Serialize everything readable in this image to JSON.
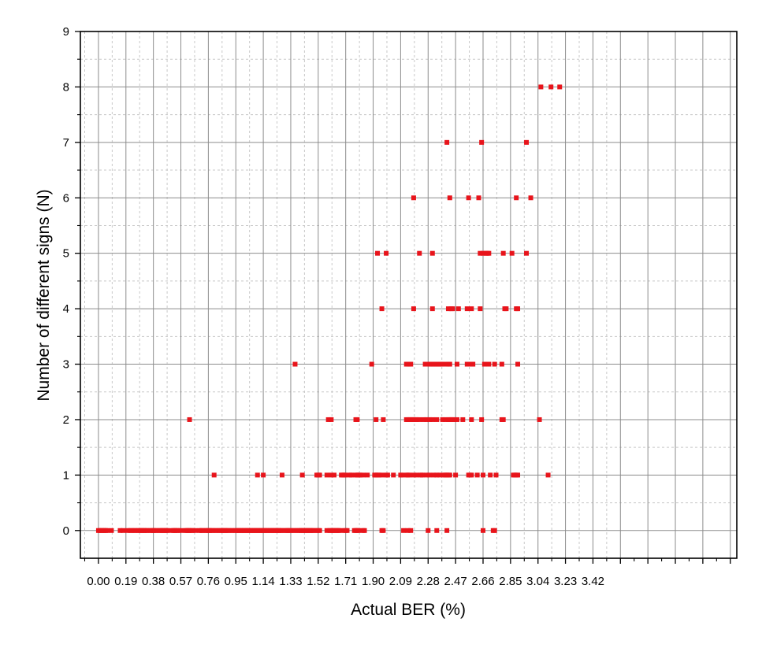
{
  "chart_data": {
    "type": "scatter",
    "xlabel": "Actual BER (%)",
    "ylabel": "Number of different signs (N)",
    "xlim": [
      -0.125,
      4.415
    ],
    "ylim": [
      -0.5,
      9
    ],
    "x_tick_labels": [
      "0.00",
      "0.19",
      "0.38",
      "0.57",
      "0.76",
      "0.95",
      "1.14",
      "1.33",
      "1.52",
      "1.71",
      "1.90",
      "2.09",
      "2.28",
      "2.47",
      "2.66",
      "2.85",
      "3.04",
      "3.23",
      "3.42"
    ],
    "x_tick_values": [
      0,
      0.19,
      0.38,
      0.57,
      0.76,
      0.95,
      1.14,
      1.33,
      1.52,
      1.71,
      1.9,
      2.09,
      2.28,
      2.47,
      2.66,
      2.85,
      3.04,
      3.23,
      3.42
    ],
    "y_tick_labels": [
      "0",
      "1",
      "2",
      "3",
      "4",
      "5",
      "6",
      "7",
      "8",
      "9"
    ],
    "y_tick_values": [
      0,
      1,
      2,
      3,
      4,
      5,
      6,
      7,
      8,
      9
    ],
    "grid": true,
    "marker_color": "#e8141b",
    "series": [
      {
        "points": [
          {
            "y": 0,
            "x": [
              0.0,
              0.01,
              0.02,
              0.03,
              0.04,
              0.05,
              0.06,
              0.09,
              0.15,
              0.17,
              0.2,
              0.22,
              0.23,
              0.25,
              0.26,
              0.28,
              0.29,
              0.3,
              0.31,
              0.32,
              0.33,
              0.34,
              0.36,
              0.37,
              0.38,
              0.39,
              0.4,
              0.42,
              0.43,
              0.44,
              0.45,
              0.46,
              0.47,
              0.48,
              0.51,
              0.52,
              0.53,
              0.54,
              0.55,
              0.57,
              0.6,
              0.61,
              0.62,
              0.63,
              0.64,
              0.65,
              0.67,
              0.7,
              0.71,
              0.72,
              0.74,
              0.75,
              0.76,
              0.77,
              0.78,
              0.79,
              0.81,
              0.82,
              0.84,
              0.85,
              0.86,
              0.87,
              0.88,
              0.89,
              0.9,
              0.92,
              0.93,
              0.95,
              0.96,
              0.97,
              0.98,
              0.99,
              1.0,
              1.01,
              1.02,
              1.03,
              1.04,
              1.05,
              1.06,
              1.07,
              1.08,
              1.09,
              1.1,
              1.11,
              1.12,
              1.13,
              1.14,
              1.15,
              1.16,
              1.17,
              1.18,
              1.19,
              1.2,
              1.21,
              1.22,
              1.23,
              1.24,
              1.25,
              1.26,
              1.27,
              1.29,
              1.3,
              1.31,
              1.32,
              1.33,
              1.35,
              1.36,
              1.38,
              1.39,
              1.4,
              1.41,
              1.42,
              1.43,
              1.44,
              1.45,
              1.46,
              1.47,
              1.48,
              1.49,
              1.51,
              1.52,
              1.53,
              1.58,
              1.6,
              1.61,
              1.62,
              1.63,
              1.64,
              1.65,
              1.66,
              1.67,
              1.7,
              1.71,
              1.72,
              1.77,
              1.78,
              1.79,
              1.8,
              1.83,
              1.84,
              1.96,
              1.97,
              2.11,
              2.14,
              2.16,
              2.28,
              2.34,
              2.41,
              2.66,
              2.73,
              2.74
            ]
          },
          {
            "y": 1,
            "x": [
              0.8,
              1.1,
              1.14,
              1.27,
              1.41,
              1.51,
              1.52,
              1.53,
              1.58,
              1.61,
              1.63,
              1.68,
              1.69,
              1.7,
              1.71,
              1.74,
              1.75,
              1.78,
              1.79,
              1.8,
              1.81,
              1.83,
              1.86,
              1.91,
              1.92,
              1.93,
              1.94,
              1.96,
              1.99,
              2.0,
              2.04,
              2.09,
              2.1,
              2.13,
              2.14,
              2.15,
              2.18,
              2.2,
              2.23,
              2.24,
              2.27,
              2.29,
              2.32,
              2.34,
              2.36,
              2.39,
              2.4,
              2.41,
              2.42,
              2.43,
              2.47,
              2.56,
              2.57,
              2.58,
              2.62,
              2.66,
              2.71,
              2.75,
              2.87,
              2.88,
              2.89,
              2.9,
              3.11
            ]
          },
          {
            "y": 2,
            "x": [
              0.63,
              1.59,
              1.61,
              1.78,
              1.79,
              1.92,
              1.97,
              2.13,
              2.14,
              2.15,
              2.16,
              2.17,
              2.18,
              2.19,
              2.2,
              2.22,
              2.25,
              2.27,
              2.29,
              2.31,
              2.34,
              2.38,
              2.4,
              2.42,
              2.43,
              2.44,
              2.45,
              2.46,
              2.48,
              2.52,
              2.58,
              2.65,
              2.79,
              2.8,
              3.05
            ]
          },
          {
            "y": 3,
            "x": [
              1.36,
              1.89,
              2.13,
              2.14,
              2.15,
              2.16,
              2.26,
              2.29,
              2.3,
              2.31,
              2.32,
              2.33,
              2.34,
              2.35,
              2.36,
              2.37,
              2.38,
              2.41,
              2.42,
              2.43,
              2.48,
              2.55,
              2.58,
              2.59,
              2.67,
              2.7,
              2.74,
              2.79,
              2.9
            ]
          },
          {
            "y": 4,
            "x": [
              1.96,
              2.18,
              2.31,
              2.42,
              2.44,
              2.45,
              2.49,
              2.55,
              2.58,
              2.64,
              2.81,
              2.82,
              2.89,
              2.9
            ]
          },
          {
            "y": 5,
            "x": [
              1.93,
              1.99,
              2.22,
              2.31,
              2.64,
              2.66,
              2.68,
              2.69,
              2.7,
              2.8,
              2.86,
              2.96
            ]
          },
          {
            "y": 6,
            "x": [
              2.18,
              2.43,
              2.56,
              2.63,
              2.89,
              2.99
            ]
          },
          {
            "y": 7,
            "x": [
              2.41,
              2.65,
              2.96
            ]
          },
          {
            "y": 8,
            "x": [
              3.06,
              3.13,
              3.19
            ]
          }
        ]
      }
    ]
  }
}
